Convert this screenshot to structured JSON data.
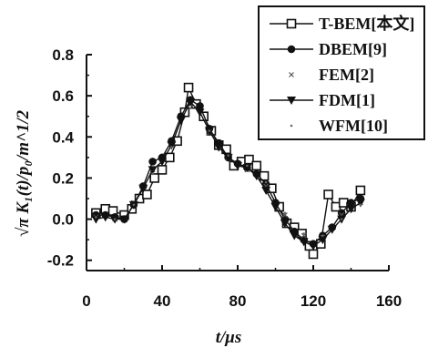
{
  "chart_data": {
    "type": "line",
    "xlabel": "t/μs",
    "ylabel": "√π K₁(t)/p₀/m^1/2",
    "xlim": [
      0,
      160
    ],
    "ylim": [
      -0.25,
      0.8
    ],
    "xticks": [
      0,
      40,
      80,
      120,
      160
    ],
    "yticks": [
      -0.2,
      0.0,
      0.2,
      0.4,
      0.6,
      0.8
    ],
    "xtick_labels": [
      "0",
      "40",
      "80",
      "120",
      "160"
    ],
    "ytick_labels": [
      "-0.2",
      "0.0",
      "0.2",
      "0.4",
      "0.6",
      "0.8"
    ],
    "grid": false,
    "legend_position": "top-right",
    "series": [
      {
        "name": "T-BEM[本文]",
        "marker": "open-square",
        "color": "#111111",
        "x": [
          5,
          10,
          14,
          20,
          24,
          28,
          32,
          36,
          40,
          44,
          48,
          52,
          54,
          58,
          62,
          66,
          70,
          74,
          78,
          82,
          86,
          90,
          94,
          98,
          102,
          106,
          110,
          114,
          118,
          120,
          124,
          128,
          132,
          136,
          140,
          145
        ],
        "y": [
          0.03,
          0.05,
          0.04,
          0.02,
          0.05,
          0.1,
          0.12,
          0.2,
          0.24,
          0.3,
          0.38,
          0.52,
          0.64,
          0.56,
          0.5,
          0.43,
          0.36,
          0.34,
          0.26,
          0.28,
          0.29,
          0.26,
          0.21,
          0.15,
          0.06,
          -0.02,
          -0.04,
          -0.07,
          -0.13,
          -0.17,
          -0.12,
          0.12,
          0.06,
          0.08,
          0.06,
          0.14
        ]
      },
      {
        "name": "DBEM[9]",
        "marker": "filled-circle",
        "color": "#111111",
        "x": [
          5,
          10,
          15,
          20,
          25,
          30,
          35,
          40,
          45,
          50,
          55,
          60,
          65,
          70,
          75,
          80,
          85,
          90,
          95,
          100,
          105,
          110,
          115,
          120,
          125,
          130,
          135,
          140,
          145
        ],
        "y": [
          0.02,
          0.02,
          0.01,
          0.0,
          0.07,
          0.16,
          0.28,
          0.3,
          0.38,
          0.5,
          0.58,
          0.55,
          0.44,
          0.37,
          0.3,
          0.27,
          0.25,
          0.22,
          0.17,
          0.08,
          0.0,
          -0.06,
          -0.1,
          -0.12,
          -0.08,
          -0.04,
          0.03,
          0.08,
          0.1
        ]
      },
      {
        "name": "FEM[2]",
        "marker": "small-x",
        "color": "#555555",
        "x": [
          5,
          15,
          25,
          35,
          45,
          55,
          65,
          75,
          85,
          95,
          105,
          115,
          125,
          135,
          145
        ],
        "y": [
          0.01,
          0.0,
          0.08,
          0.24,
          0.36,
          0.56,
          0.42,
          0.3,
          0.24,
          0.16,
          0.02,
          -0.08,
          -0.09,
          0.02,
          0.08
        ]
      },
      {
        "name": "FDM[1]",
        "marker": "filled-triangle-down",
        "color": "#111111",
        "x": [
          5,
          10,
          15,
          20,
          25,
          30,
          35,
          40,
          45,
          50,
          55,
          60,
          65,
          70,
          75,
          80,
          85,
          90,
          95,
          100,
          105,
          110,
          115,
          120,
          125,
          130,
          135,
          140,
          145
        ],
        "y": [
          0.0,
          0.01,
          0.0,
          0.0,
          0.07,
          0.15,
          0.24,
          0.28,
          0.36,
          0.48,
          0.57,
          0.52,
          0.43,
          0.35,
          0.3,
          0.26,
          0.25,
          0.21,
          0.14,
          0.06,
          -0.02,
          -0.08,
          -0.11,
          -0.13,
          -0.1,
          -0.05,
          0.0,
          0.05,
          0.08
        ]
      },
      {
        "name": "WFM[10]",
        "marker": "dot",
        "color": "#666666",
        "x": [
          5,
          15,
          25,
          35,
          45,
          55,
          65,
          75,
          85,
          95,
          105,
          115,
          125,
          135,
          145
        ],
        "y": [
          0.01,
          0.0,
          0.07,
          0.22,
          0.35,
          0.54,
          0.43,
          0.31,
          0.26,
          0.18,
          0.03,
          -0.07,
          -0.08,
          0.0,
          0.07
        ]
      }
    ]
  }
}
